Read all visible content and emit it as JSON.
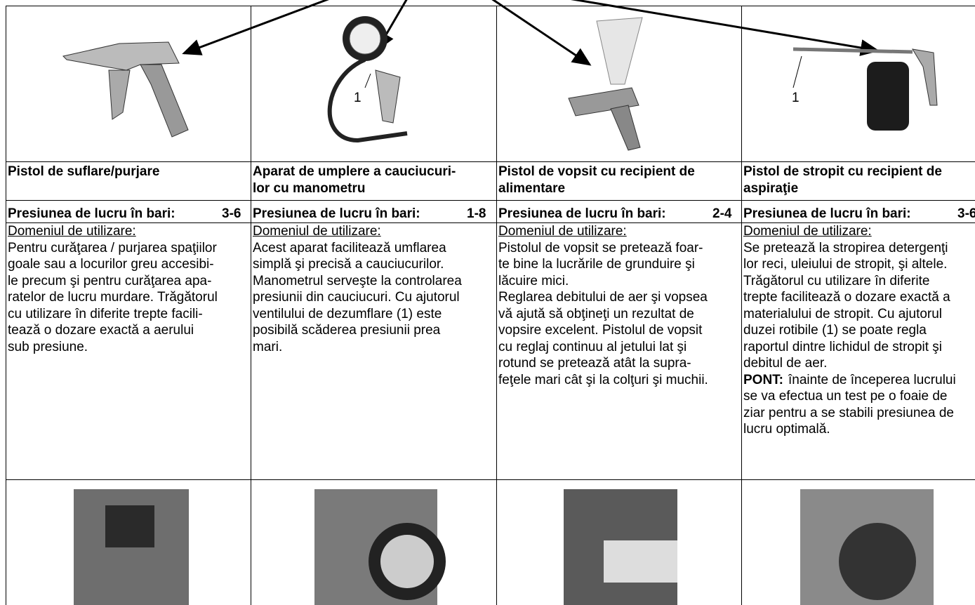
{
  "columns": [
    {
      "callout": null,
      "title": [
        "Pistol de suflare/purjare"
      ],
      "pressure_label": "Presiunea de lucru în bari:",
      "pressure_value": "3-6",
      "heading": "Domeniul de utilizare:",
      "lines": [
        "Pentru curăţarea / purjarea spaţiilor",
        "goale sau a locurilor greu accesibi-",
        "le precum şi pentru curăţarea apa-",
        "ratelor de lucru murdare. Trăgătorul",
        "cu utilizare în diferite trepte facili-",
        "tează o dozare exactă a aerului",
        "sub presiune."
      ],
      "tip_label": null,
      "tip_lines": []
    },
    {
      "callout": "1",
      "title": [
        "Aparat de umplere a cauciucuri-",
        "lor cu manometru"
      ],
      "pressure_label": "Presiunea de lucru în bari:",
      "pressure_value": "1-8",
      "heading": "Domeniul de utilizare:",
      "lines": [
        "Acest aparat facilitează umflarea",
        "simplă şi precisă a cauciucurilor.",
        "Manometrul serveşte la controlarea",
        "presiunii din cauciucuri. Cu ajutorul",
        "ventilului de dezumflare (1) este",
        "posibilă scăderea presiunii prea",
        "mari."
      ],
      "tip_label": null,
      "tip_lines": []
    },
    {
      "callout": null,
      "title": [
        "Pistol de vopsit cu recipient de",
        "alimentare"
      ],
      "pressure_label": "Presiunea de lucru în bari:",
      "pressure_value": "2-4",
      "heading": "Domeniul de utilizare:",
      "lines": [
        "Pistolul de vopsit se pretează foar-",
        "te bine la lucrările de grunduire şi",
        "lăcuire mici.",
        "Reglarea debitului de aer şi vopsea",
        "vă ajută să obţineţi un rezultat de",
        "vopsire excelent. Pistolul de vopsit",
        "cu reglaj continuu al jetului lat şi",
        "rotund se pretează atât la supra-",
        "feţele mari cât şi la colţuri şi muchii."
      ],
      "tip_label": null,
      "tip_lines": []
    },
    {
      "callout": "1",
      "title": [
        "Pistol de stropit cu recipient de",
        "aspiraţie"
      ],
      "pressure_label": "Presiunea de lucru în bari:",
      "pressure_value": "3-6",
      "heading": "Domeniul de utilizare:",
      "lines": [
        "Se pretează la stropirea detergenţi",
        "lor reci, uleiului de stropit, şi altele.",
        "Trăgătorul cu utilizare în diferite",
        "trepte facilitează o dozare exactă a",
        "materialului de stropit. Cu ajutorul",
        "duzei rotibile (1) se poate regla",
        "raportul dintre lichidul de stropit şi",
        "debitul de aer."
      ],
      "tip_label": "PONT:",
      "tip_lines": [
        " înainte de începerea lucrului",
        "se va efectua un test pe o foaie de",
        "ziar pentru a se stabili presiunea de",
        "lucru optimală."
      ]
    }
  ]
}
